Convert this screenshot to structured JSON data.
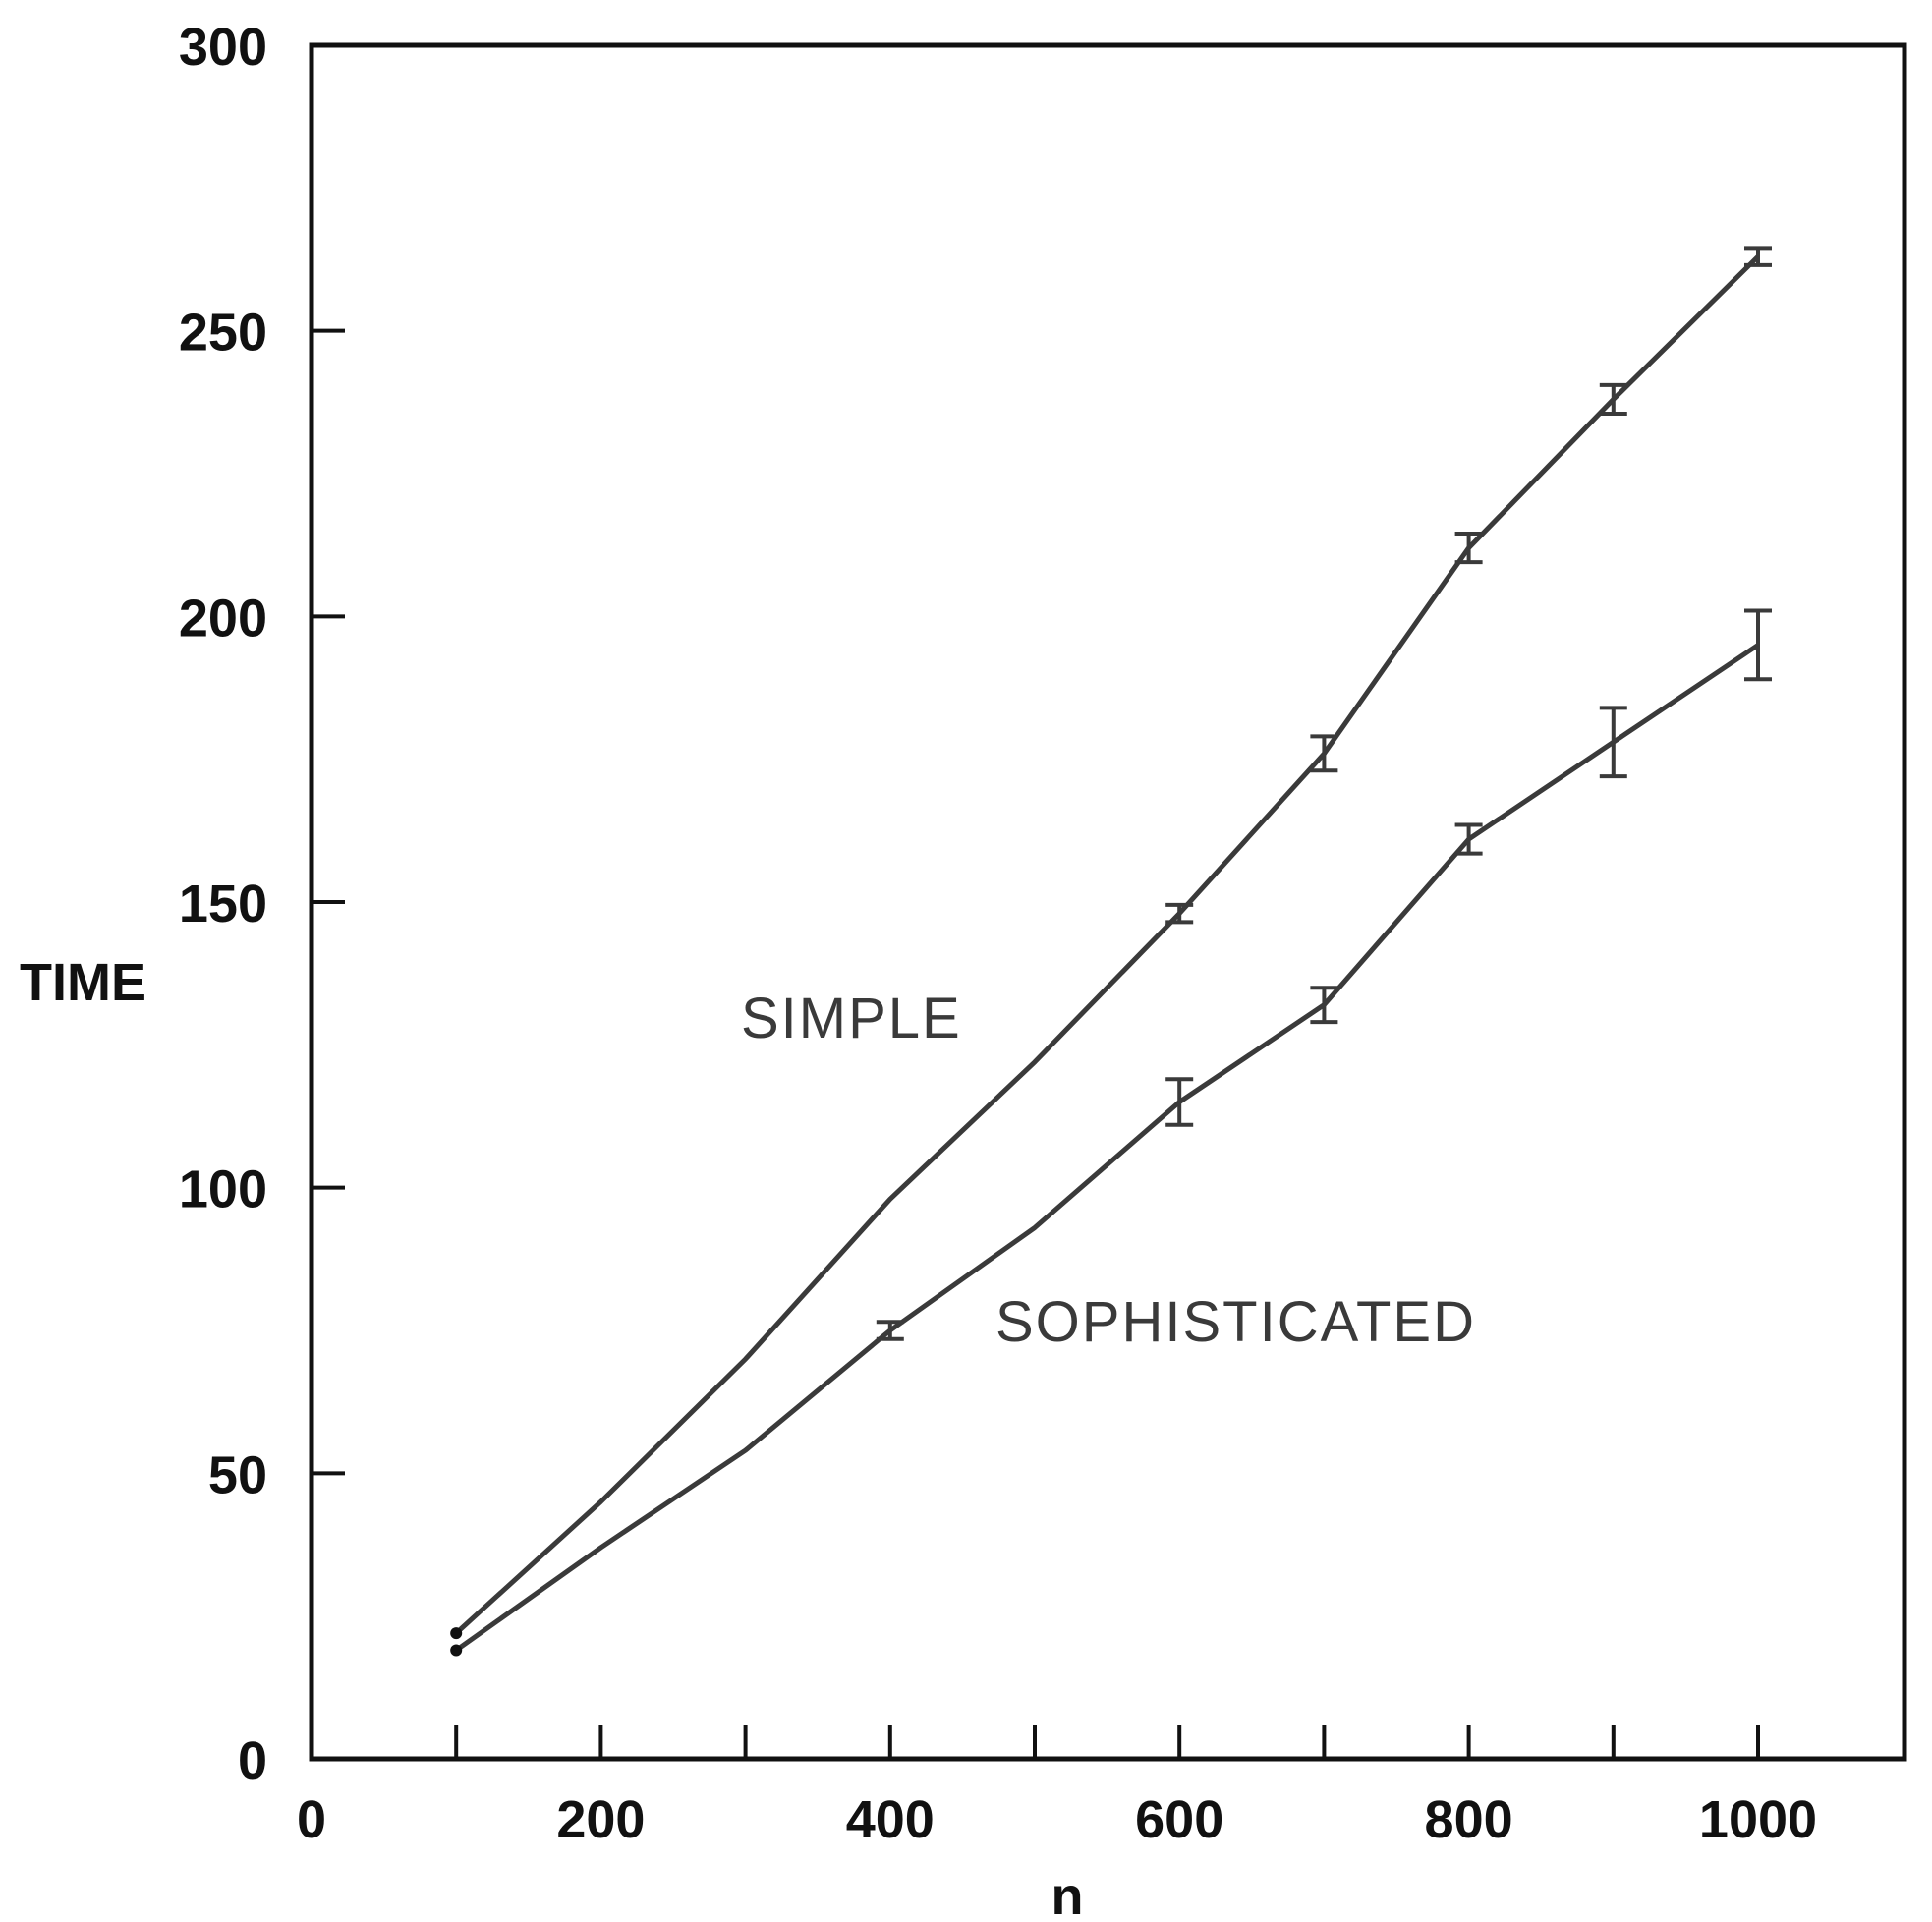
{
  "chart_data": {
    "type": "line",
    "xlabel": "n",
    "ylabel": "TIME",
    "xlim": [
      0,
      1100
    ],
    "ylim": [
      0,
      300
    ],
    "x_ticks": [
      0,
      200,
      400,
      600,
      800,
      1000
    ],
    "x_minor_ticks": [
      100,
      300,
      500,
      700,
      900
    ],
    "y_ticks": [
      0,
      50,
      100,
      150,
      200,
      250,
      300
    ],
    "grid": false,
    "series": [
      {
        "name": "SIMPLE",
        "color": "#3a3a3a",
        "points": [
          {
            "x": 100,
            "y": 22
          },
          {
            "x": 200,
            "y": 45
          },
          {
            "x": 300,
            "y": 70
          },
          {
            "x": 400,
            "y": 98
          },
          {
            "x": 500,
            "y": 122
          },
          {
            "x": 600,
            "y": 148,
            "err": 1.5
          },
          {
            "x": 700,
            "y": 176,
            "err": 3
          },
          {
            "x": 800,
            "y": 212,
            "err": 2.5
          },
          {
            "x": 900,
            "y": 238,
            "err": 2.5
          },
          {
            "x": 1000,
            "y": 263,
            "err": 1.5
          }
        ]
      },
      {
        "name": "SOPHISTICATED",
        "color": "#3a3a3a",
        "points": [
          {
            "x": 100,
            "y": 19
          },
          {
            "x": 200,
            "y": 37
          },
          {
            "x": 300,
            "y": 54
          },
          {
            "x": 400,
            "y": 75,
            "err": 1.5
          },
          {
            "x": 500,
            "y": 93
          },
          {
            "x": 600,
            "y": 115,
            "err": 4
          },
          {
            "x": 700,
            "y": 132,
            "err": 3
          },
          {
            "x": 800,
            "y": 161,
            "err": 2.5
          },
          {
            "x": 900,
            "y": 178,
            "err": 6
          },
          {
            "x": 1000,
            "y": 195,
            "err": 6
          }
        ]
      }
    ]
  }
}
